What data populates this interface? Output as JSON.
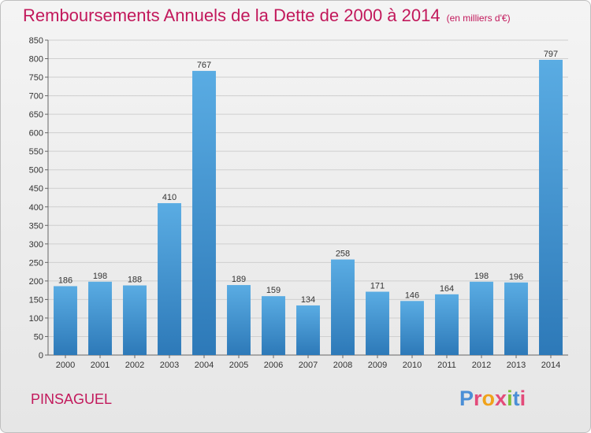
{
  "header": {
    "title": "Remboursements Annuels de la Dette de 2000 à 2014",
    "subtitle": "(en milliers d'€)"
  },
  "footer": {
    "city": "PINSAGUEL",
    "logo": {
      "text": "Proxiti",
      "colors": [
        "#4b8fd6",
        "#e34b7a",
        "#f0a21a",
        "#e34b7a",
        "#7bbf3a",
        "#4b8fd6",
        "#e34b7a"
      ]
    }
  },
  "colors": {
    "bar_top": "#5aace3",
    "bar_bottom": "#2d79b8",
    "title": "#c2185b",
    "grid": "#cfcfcf"
  },
  "chart_data": {
    "type": "bar",
    "title": "Remboursements Annuels de la Dette de 2000 à 2014",
    "subtitle": "(en milliers d'€)",
    "categories": [
      "2000",
      "2001",
      "2002",
      "2003",
      "2004",
      "2005",
      "2006",
      "2007",
      "2008",
      "2009",
      "2010",
      "2011",
      "2012",
      "2013",
      "2014"
    ],
    "values": [
      186,
      198,
      188,
      410,
      767,
      189,
      159,
      134,
      258,
      171,
      146,
      164,
      198,
      196,
      797
    ],
    "ylim": [
      0,
      850
    ],
    "yticks": [
      0,
      50,
      100,
      150,
      200,
      250,
      300,
      350,
      400,
      450,
      500,
      550,
      600,
      650,
      700,
      750,
      800,
      850
    ],
    "grid": true,
    "data_labels": true
  }
}
